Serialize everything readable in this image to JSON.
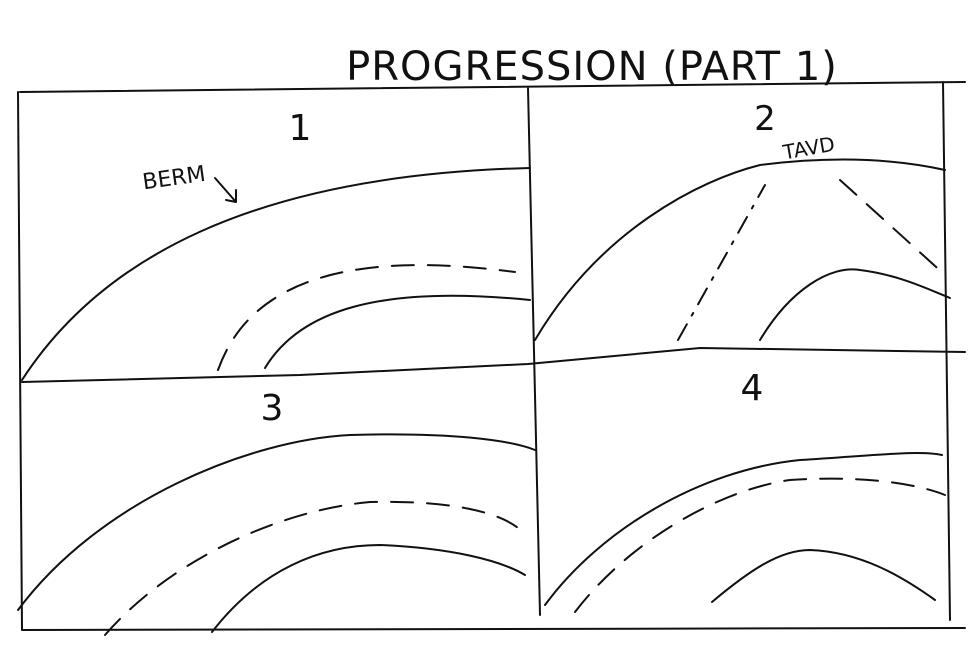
{
  "title": "PROGRESSION (PART 1)",
  "panels": [
    {
      "label": "1",
      "annotation": "BERM"
    },
    {
      "label": "2",
      "annotation": "TAVD"
    },
    {
      "label": "3"
    },
    {
      "label": "4"
    }
  ]
}
